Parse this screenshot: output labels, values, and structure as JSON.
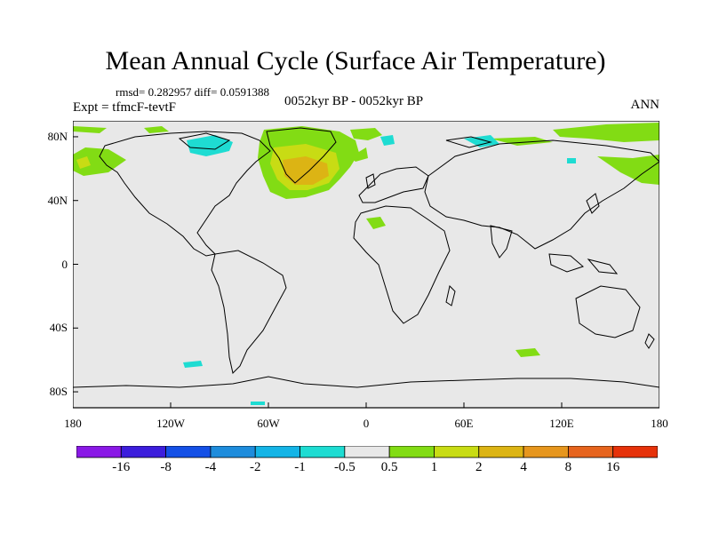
{
  "title": "Mean Annual Cycle (Surface Air Temperature)",
  "stats": "rmsd= 0.282957 diff= 0.0591388",
  "expt_label": "Expt = tfmcF-tevtF",
  "center_label": "0052kyr BP - 0052kyr BP",
  "season": "ANN",
  "lat_ticks": [
    {
      "label": "80N",
      "value": 80
    },
    {
      "label": "40N",
      "value": 40
    },
    {
      "label": "0",
      "value": 0
    },
    {
      "label": "40S",
      "value": -40
    },
    {
      "label": "80S",
      "value": -80
    }
  ],
  "lon_ticks": [
    {
      "label": "180",
      "value": -180
    },
    {
      "label": "120W",
      "value": -120
    },
    {
      "label": "60W",
      "value": -60
    },
    {
      "label": "0",
      "value": 0
    },
    {
      "label": "60E",
      "value": 60
    },
    {
      "label": "120E",
      "value": 120
    },
    {
      "label": "180",
      "value": 180
    }
  ],
  "colorbar": {
    "colors": [
      "#8a19e6",
      "#3c1edc",
      "#1450e6",
      "#1e8cdc",
      "#14b4e6",
      "#1edcd2",
      "#e8e8e8",
      "#82dc14",
      "#c8dc14",
      "#dcb414",
      "#e6961e",
      "#e6641e",
      "#e6320a"
    ],
    "labels": [
      "-16",
      "-8",
      "-4",
      "-2",
      "-1",
      "-0.5",
      "0.5",
      "1",
      "2",
      "4",
      "8",
      "16"
    ]
  },
  "colors": {
    "ocean_land_fill": "#e8e8e8",
    "positive_1": "#82dc14",
    "positive_2": "#c8dc14",
    "positive_4": "#dcb414",
    "negative_1": "#1edcd2"
  }
}
